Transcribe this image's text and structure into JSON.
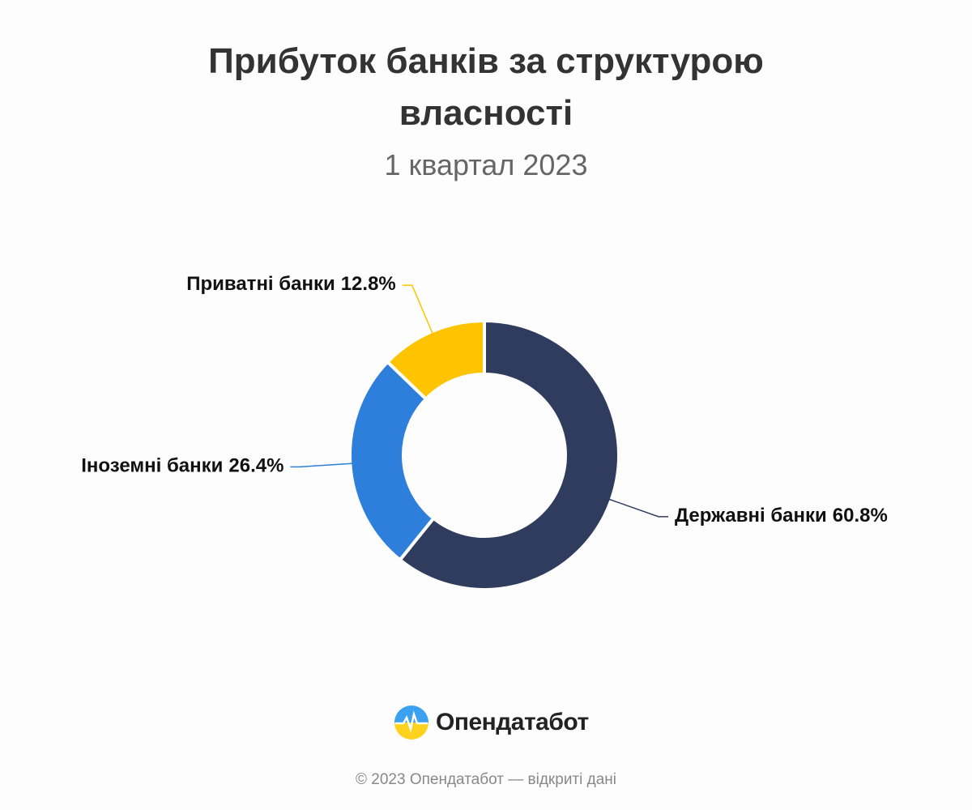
{
  "chart_data": {
    "type": "donut",
    "title": "Прибуток банків за структурою власності",
    "subtitle": "1 квартал 2023",
    "categories": [
      "Державні банки",
      "Іноземні банки",
      "Приватні банки"
    ],
    "values": [
      60.8,
      26.4,
      12.8
    ],
    "value_labels": [
      "60.8%",
      "26.4%",
      "12.8%"
    ],
    "colors": [
      "#2f3c5e",
      "#2e7fdb",
      "#ffc400"
    ]
  },
  "branding": {
    "logo_text": "Опендатабот",
    "footer": "© 2023 Опендатабот — відкриті дані"
  }
}
